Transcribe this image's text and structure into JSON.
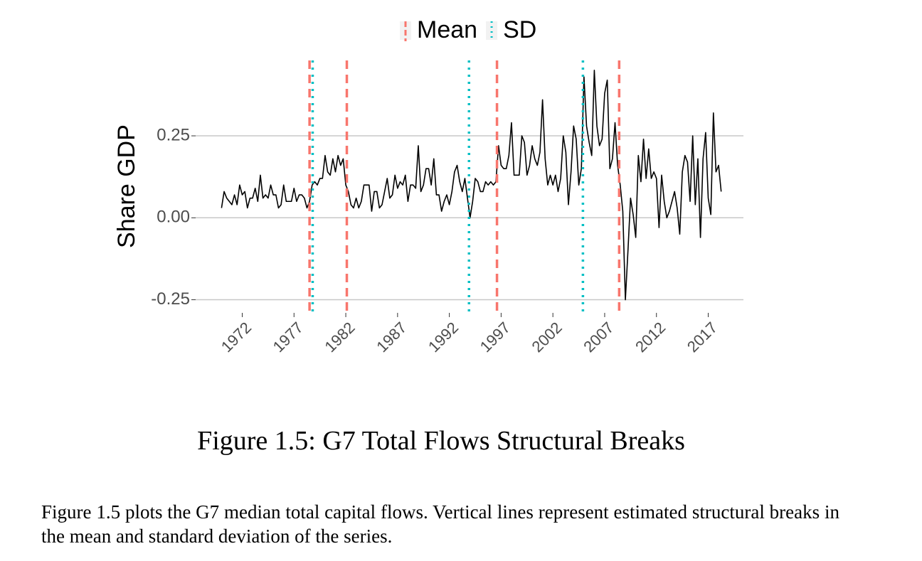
{
  "chart_data": {
    "type": "line",
    "y_label": "Share GDP",
    "x": [
      1970,
      1970.25,
      1970.5,
      1970.75,
      1971,
      1971.25,
      1971.5,
      1971.75,
      1972,
      1972.25,
      1972.5,
      1972.75,
      1973,
      1973.25,
      1973.5,
      1973.75,
      1974,
      1974.25,
      1974.5,
      1974.75,
      1975,
      1975.25,
      1975.5,
      1975.75,
      1976,
      1976.25,
      1976.5,
      1976.75,
      1977,
      1977.25,
      1977.5,
      1977.75,
      1978,
      1978.25,
      1978.5,
      1978.75,
      1979,
      1979.25,
      1979.5,
      1979.75,
      1980,
      1980.25,
      1980.5,
      1980.75,
      1981,
      1981.25,
      1981.5,
      1981.75,
      1982,
      1982.25,
      1982.5,
      1982.75,
      1983,
      1983.25,
      1983.5,
      1983.75,
      1984,
      1984.25,
      1984.5,
      1984.75,
      1985,
      1985.25,
      1985.5,
      1985.75,
      1986,
      1986.25,
      1986.5,
      1986.75,
      1987,
      1987.25,
      1987.5,
      1987.75,
      1988,
      1988.25,
      1988.5,
      1988.75,
      1989,
      1989.25,
      1989.5,
      1989.75,
      1990,
      1990.25,
      1990.5,
      1990.75,
      1991,
      1991.25,
      1991.5,
      1991.75,
      1992,
      1992.25,
      1992.5,
      1992.75,
      1993,
      1993.25,
      1993.5,
      1993.75,
      1994,
      1994.25,
      1994.5,
      1994.75,
      1995,
      1995.25,
      1995.5,
      1995.75,
      1996,
      1996.25,
      1996.5,
      1996.75,
      1997,
      1997.25,
      1997.5,
      1997.75,
      1998,
      1998.25,
      1998.5,
      1998.75,
      1999,
      1999.25,
      1999.5,
      1999.75,
      2000,
      2000.25,
      2000.5,
      2000.75,
      2001,
      2001.25,
      2001.5,
      2001.75,
      2002,
      2002.25,
      2002.5,
      2002.75,
      2003,
      2003.25,
      2003.5,
      2003.75,
      2004,
      2004.25,
      2004.5,
      2004.75,
      2005,
      2005.25,
      2005.5,
      2005.75,
      2006,
      2006.25,
      2006.5,
      2006.75,
      2007,
      2007.25,
      2007.5,
      2007.75,
      2008,
      2008.25,
      2008.5,
      2008.75,
      2009,
      2009.25,
      2009.5,
      2009.75,
      2010,
      2010.25,
      2010.5,
      2010.75,
      2011,
      2011.25,
      2011.5,
      2011.75,
      2012,
      2012.25,
      2012.5,
      2012.75,
      2013,
      2013.25,
      2013.5,
      2013.75,
      2014,
      2014.25,
      2014.5,
      2014.75,
      2015,
      2015.25,
      2015.5,
      2015.75,
      2016,
      2016.25,
      2016.5,
      2016.75,
      2017,
      2017.25,
      2017.5,
      2017.75,
      2018,
      2018.25
    ],
    "series": [
      {
        "color": "#000000",
        "values": [
          0.03,
          0.08,
          0.06,
          0.05,
          0.04,
          0.07,
          0.04,
          0.1,
          0.07,
          0.08,
          0.03,
          0.06,
          0.06,
          0.09,
          0.05,
          0.13,
          0.06,
          0.07,
          0.06,
          0.1,
          0.07,
          0.07,
          0.03,
          0.04,
          0.1,
          0.05,
          0.05,
          0.05,
          0.09,
          0.05,
          0.07,
          0.07,
          0.06,
          0.03,
          0.05,
          0.1,
          0.11,
          0.1,
          0.12,
          0.12,
          0.19,
          0.14,
          0.13,
          0.18,
          0.14,
          0.19,
          0.16,
          0.18,
          0.1,
          0.08,
          0.04,
          0.03,
          0.06,
          0.03,
          0.05,
          0.1,
          0.1,
          0.1,
          0.02,
          0.08,
          0.08,
          0.03,
          0.04,
          0.08,
          0.12,
          0.06,
          0.07,
          0.13,
          0.09,
          0.11,
          0.1,
          0.13,
          0.05,
          0.1,
          0.1,
          0.09,
          0.22,
          0.08,
          0.1,
          0.15,
          0.15,
          0.1,
          0.18,
          0.07,
          0.07,
          0.02,
          0.05,
          0.07,
          0.04,
          0.08,
          0.14,
          0.16,
          0.11,
          0.08,
          0.12,
          0.06,
          0.0,
          0.05,
          0.12,
          0.11,
          0.08,
          0.08,
          0.11,
          0.1,
          0.11,
          0.1,
          0.11,
          0.22,
          0.16,
          0.15,
          0.15,
          0.19,
          0.29,
          0.13,
          0.13,
          0.13,
          0.25,
          0.23,
          0.13,
          0.16,
          0.22,
          0.18,
          0.16,
          0.2,
          0.36,
          0.18,
          0.1,
          0.13,
          0.1,
          0.13,
          0.08,
          0.12,
          0.25,
          0.2,
          0.04,
          0.14,
          0.28,
          0.24,
          0.1,
          0.15,
          0.43,
          0.28,
          0.23,
          0.19,
          0.45,
          0.28,
          0.22,
          0.24,
          0.38,
          0.42,
          0.15,
          0.18,
          0.29,
          0.16,
          0.1,
          0.02,
          -0.25,
          -0.1,
          0.06,
          0.01,
          -0.06,
          0.19,
          0.11,
          0.24,
          0.12,
          0.21,
          0.12,
          0.14,
          0.12,
          -0.03,
          0.13,
          0.05,
          0.0,
          0.02,
          0.05,
          0.08,
          0.03,
          -0.05,
          0.14,
          0.19,
          0.17,
          0.05,
          0.25,
          0.04,
          0.18,
          -0.06,
          0.18,
          0.26,
          0.06,
          0.01,
          0.32,
          0.14,
          0.16,
          0.08
        ]
      }
    ],
    "breaks": [
      {
        "name": "Mean",
        "color": "#f8766d",
        "dash": "dashed",
        "values": [
          1978.5,
          1982.1,
          1996.6,
          2008.4
        ]
      },
      {
        "name": "SD",
        "color": "#00bfc4",
        "dash": "dotted",
        "values": [
          1978.8,
          1993.9,
          2004.9
        ]
      }
    ],
    "xlim": [
      1967.5,
      2020.4
    ],
    "xticks": [
      1972,
      1977,
      1982,
      1987,
      1992,
      1997,
      2002,
      2007,
      2012,
      2017
    ],
    "ylim": [
      -0.29,
      0.48
    ],
    "yticks": [
      -0.25,
      {
        "value": 0,
        "label": "0.00"
      },
      0.25
    ],
    "grid": true,
    "legend": "top"
  },
  "caption": "Figure 1.5: G7 Total Flows Structural Breaks",
  "note": "Figure 1.5 plots the G7 median total capital flows. Vertical lines represent estimated structural breaks in the mean and standard deviation of the series."
}
